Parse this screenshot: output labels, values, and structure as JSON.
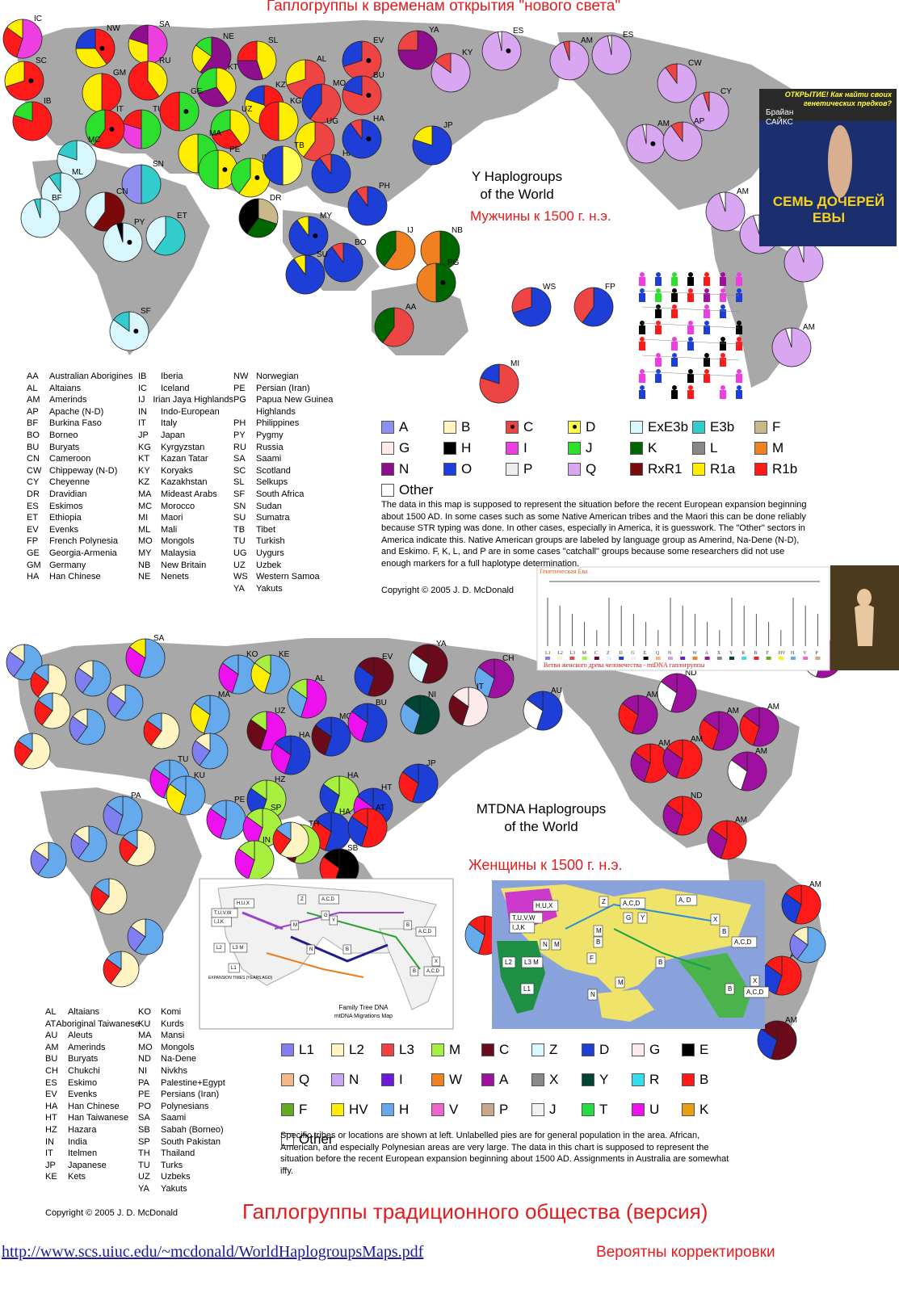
{
  "header": {
    "title": "Гаплогруппы к временам открытия \"нового света\""
  },
  "y_map": {
    "title_line1": "Y Haplogroups",
    "title_line2": "of the World",
    "russian_caption": "Мужчины к 1500 г. н.э.",
    "abbreviations": [
      [
        [
          "AA",
          "Australian Aborigines"
        ],
        [
          "AL",
          "Altaians"
        ],
        [
          "AM",
          "Amerinds"
        ],
        [
          "AP",
          "Apache (N-D)"
        ],
        [
          "BF",
          "Burkina Faso"
        ],
        [
          "BO",
          "Borneo"
        ],
        [
          "BU",
          "Buryats"
        ],
        [
          "CN",
          "Cameroon"
        ],
        [
          "CW",
          "Chippeway (N-D)"
        ],
        [
          "CY",
          "Cheyenne"
        ],
        [
          "DR",
          "Dravidian"
        ],
        [
          "ES",
          "Eskimos"
        ],
        [
          "ET",
          "Ethiopia"
        ],
        [
          "EV",
          "Evenks"
        ],
        [
          "FP",
          "French Polynesia"
        ],
        [
          "GE",
          "Georgia-Armenia"
        ],
        [
          "GM",
          "Germany"
        ],
        [
          "HA",
          "Han Chinese"
        ]
      ],
      [
        [
          "IB",
          "Iberia"
        ],
        [
          "IC",
          "Iceland"
        ],
        [
          "IJ",
          "Irian Jaya Highlands"
        ],
        [
          "IN",
          "Indo-European"
        ],
        [
          "IT",
          "Italy"
        ],
        [
          "JP",
          "Japan"
        ],
        [
          "KG",
          "Kyrgyzstan"
        ],
        [
          "KT",
          "Kazan Tatar"
        ],
        [
          "KY",
          "Koryaks"
        ],
        [
          "KZ",
          "Kazakhstan"
        ],
        [
          "MA",
          "Mideast Arabs"
        ],
        [
          "MC",
          "Morocco"
        ],
        [
          "MI",
          "Maori"
        ],
        [
          "ML",
          "Mali"
        ],
        [
          "MO",
          "Mongols"
        ],
        [
          "MY",
          "Malaysia"
        ],
        [
          "NB",
          "New Britain"
        ],
        [
          "NE",
          "Nenets"
        ]
      ],
      [
        [
          "NW",
          "Norwegian"
        ],
        [
          "PE",
          "Persian (Iran)"
        ],
        [
          "PG",
          "Papua New Guinea Highlands"
        ],
        [
          "PH",
          "Philippines"
        ],
        [
          "PY",
          "Pygmy"
        ],
        [
          "RU",
          "Russia"
        ],
        [
          "SA",
          "Saami"
        ],
        [
          "SC",
          "Scotland"
        ],
        [
          "SL",
          "Selkups"
        ],
        [
          "SF",
          "South Africa"
        ],
        [
          "SN",
          "Sudan"
        ],
        [
          "SU",
          "Sumatra"
        ],
        [
          "TB",
          "Tibet"
        ],
        [
          "TU",
          "Turkish"
        ],
        [
          "UG",
          "Uygurs"
        ],
        [
          "UZ",
          "Uzbek"
        ],
        [
          "WS",
          "Western Samoa"
        ],
        [
          "YA",
          "Yakuts"
        ]
      ]
    ],
    "legend": [
      {
        "label": "A",
        "color": "#8f8ff2"
      },
      {
        "label": "B",
        "color": "#fff4c2"
      },
      {
        "label": "C",
        "color": "#ef4444",
        "dot": true
      },
      {
        "label": "D",
        "color": "#ffff55",
        "dot": true
      },
      {
        "label": "ExE3b",
        "color": "#d9f7ff"
      },
      {
        "label": "E3b",
        "color": "#33cccc"
      },
      {
        "label": "F",
        "color": "#c8b88a"
      },
      {
        "label": "G",
        "color": "#fdeaea"
      },
      {
        "label": "H",
        "color": "#000000"
      },
      {
        "label": "I",
        "color": "#ee3ee0"
      },
      {
        "label": "J",
        "color": "#2ee02e"
      },
      {
        "label": "K",
        "color": "#006600"
      },
      {
        "label": "L",
        "color": "#888888"
      },
      {
        "label": "M",
        "color": "#f08020"
      },
      {
        "label": "N",
        "color": "#8e0e8e"
      },
      {
        "label": "O",
        "color": "#1d3fd8"
      },
      {
        "label": "P",
        "color": "#eeeeee"
      },
      {
        "label": "Q",
        "color": "#d9a6f2"
      },
      {
        "label": "RxR1",
        "color": "#7a0a0a"
      },
      {
        "label": "R1a",
        "color": "#ffee00"
      },
      {
        "label": "R1b",
        "color": "#ff1a1a"
      },
      {
        "label": "Other",
        "color": "#ffffff"
      }
    ],
    "notes": "The data in this map is supposed to represent the situation before the recent European expansion beginning about 1500 AD. In some cases such as some Native American tribes and the Maori this can be done reliably because STR typing was done. In other cases, especially in America, it is guesswork. The \"Other\" sectors in America indicate this. Native American groups are labeled by language group as Amerind, Na-Dene (N-D), and Eskimo.  F, K, L, and P are in some cases \"catchall\" groups because some researchers did not use enough markers for a full haplotype determination.",
    "copyright": "Copyright © 2005 J. D. McDonald"
  },
  "book": {
    "top": "ОТКРЫТИЕ! Как найти своих генетических предков?",
    "author": "Брайан САЙКС",
    "title": "СЕМЬ ДОЧЕРЕЙ ЕВЫ"
  },
  "tree_panel": {
    "title": "Генетическая Ева",
    "caption": "Ветви женского древа человечества - mtDNA гаплогруппы",
    "leaves": [
      "L1",
      "L2",
      "L3",
      "M",
      "C",
      "Z",
      "D",
      "G",
      "E",
      "Q",
      "N",
      "I",
      "W",
      "A",
      "X",
      "Y",
      "R",
      "B",
      "F",
      "HV",
      "H",
      "V",
      "P"
    ]
  },
  "mt_map": {
    "title_line1": "MTDNA Haplogroups",
    "title_line2": "of the World",
    "russian_caption": "Женщины к 1500 г. н.э.",
    "abbreviations": [
      [
        [
          "AL",
          "Altaians"
        ],
        [
          "AT",
          "Aboriginal Taiwanese"
        ],
        [
          "AU",
          "Aleuts"
        ],
        [
          "AM",
          "Amerinds"
        ],
        [
          "BU",
          "Buryats"
        ],
        [
          "CH",
          "Chukchi"
        ],
        [
          "ES",
          "Eskimo"
        ],
        [
          "EV",
          "Evenks"
        ],
        [
          "HA",
          "Han Chinese"
        ],
        [
          "HT",
          "Han Taiwanese"
        ],
        [
          "HZ",
          "Hazara"
        ],
        [
          "IN",
          "India"
        ],
        [
          "IT",
          "Itelmen"
        ],
        [
          "JP",
          "Japanese"
        ],
        [
          "KE",
          "Kets"
        ]
      ],
      [
        [
          "KO",
          "Komi"
        ],
        [
          "KU",
          "Kurds"
        ],
        [
          "MA",
          "Mansi"
        ],
        [
          "MO",
          "Mongols"
        ],
        [
          "ND",
          "Na-Dene"
        ],
        [
          "NI",
          "Nivkhs"
        ],
        [
          "PA",
          "Palestine+Egypt"
        ],
        [
          "PE",
          "Persians (Iran)"
        ],
        [
          "PO",
          "Polynesians"
        ],
        [
          "SA",
          "Saami"
        ],
        [
          "SB",
          "Sabah (Borneo)"
        ],
        [
          "SP",
          "South Pakistan"
        ],
        [
          "TH",
          "Thailand"
        ],
        [
          "TU",
          "Turks"
        ],
        [
          "UZ",
          "Uzbeks"
        ],
        [
          "YA",
          "Yakuts"
        ]
      ]
    ],
    "legend": [
      {
        "label": "L1",
        "color": "#7f7ff2"
      },
      {
        "label": "L2",
        "color": "#fff4c2"
      },
      {
        "label": "L3",
        "color": "#ef4444"
      },
      {
        "label": "M",
        "color": "#a8f040"
      },
      {
        "label": "C",
        "color": "#6b0a1a"
      },
      {
        "label": "Z",
        "color": "#d9f7ff"
      },
      {
        "label": "D",
        "color": "#1d3fd8"
      },
      {
        "label": "G",
        "color": "#fdeaea"
      },
      {
        "label": "E",
        "color": "#000000"
      },
      {
        "label": "Q",
        "color": "#f5b888"
      },
      {
        "label": "N",
        "color": "#c9a6f2"
      },
      {
        "label": "I",
        "color": "#6a1ad8"
      },
      {
        "label": "W",
        "color": "#f08020"
      },
      {
        "label": "A",
        "color": "#a010a0"
      },
      {
        "label": "X",
        "color": "#888888"
      },
      {
        "label": "Y",
        "color": "#004433"
      },
      {
        "label": "R",
        "color": "#33ddee"
      },
      {
        "label": "B",
        "color": "#ff1a1a"
      },
      {
        "label": "F",
        "color": "#66aa22"
      },
      {
        "label": "HV",
        "color": "#ffee00"
      },
      {
        "label": "H",
        "color": "#66aaee"
      },
      {
        "label": "V",
        "color": "#ee66cc"
      },
      {
        "label": "P",
        "color": "#c8a888"
      },
      {
        "label": "J",
        "color": "#f2f2f2"
      },
      {
        "label": "T",
        "color": "#22dd44"
      },
      {
        "label": "U",
        "color": "#ee10ee"
      },
      {
        "label": "K",
        "color": "#e8a010"
      },
      {
        "label": "Other",
        "color": "#ffffff"
      }
    ],
    "notes": "Specific tribes or locations are shown at left. Unlabelled pies are for general population in the area. African, American, and especially Polynesian areas are very large. The data in this chart is supposed to represent the situation before the recent European expansion beginning about 1500 AD. Assignments in Australia are somewhat iffy.",
    "copyright": "Copyright © 2005 J. D. McDonald"
  },
  "migration_map_1": {
    "title": "Family Tree DNA",
    "subtitle": "mtDNA Migrations Map",
    "table_title": "EXPANSION TIMES (YEARS AGO)",
    "labels": [
      "H,U,X",
      "T,U,V,W",
      "I,J,K",
      "L2",
      "L3 M",
      "L1",
      "Z",
      "A,C,D",
      "M",
      "G",
      "Y",
      "B",
      "A,C,D",
      "X",
      "B",
      "A,C,D",
      "N",
      "B"
    ]
  },
  "migration_map_2": {
    "labels": [
      "H,U,X",
      "T,U,V,W",
      "I,J,K",
      "L2",
      "L3 M",
      "L1",
      "N",
      "M",
      "Z",
      "A,C,D",
      "A, D",
      "G",
      "Y",
      "M",
      "B",
      "X",
      "B",
      "A,C,D",
      "F",
      "B",
      "M",
      "X",
      "B",
      "A,C,D",
      "N"
    ]
  },
  "footer": {
    "title": "Гаплогруппы традиционного общества (версия)",
    "url": "http://www.scs.uiuc.edu/~mcdonald/WorldHaplogroupsMaps.pdf",
    "note": "Вероятны корректировки"
  },
  "pie_labels_y": [
    "IC",
    "NW",
    "SA",
    "NE",
    "SL",
    "EV",
    "YA",
    "AM",
    "ES",
    "SC",
    "GM",
    "RU",
    "AL",
    "ES",
    "CW",
    "KT",
    "MO",
    "BU",
    "KY",
    "IB",
    "TU",
    "GE",
    "KZ",
    "KG",
    "CY",
    "IT",
    "UG",
    "JP",
    "UZ",
    "AM",
    "AP",
    "MC",
    "MA",
    "PE",
    "SN",
    "HA",
    "ML",
    "IN",
    "TB",
    "BF",
    "CN",
    "HA",
    "PH",
    "AM",
    "DR",
    "MY",
    "IJ",
    "NB",
    "AM",
    "PY",
    "ET",
    "BO",
    "SU",
    "PG",
    "AM",
    "WS",
    "FP",
    "SF",
    "AA",
    "AM",
    "MI"
  ],
  "pie_labels_mt": [
    "SA",
    "KO",
    "KE",
    "EV",
    "YA",
    "CH",
    "ND",
    "ES",
    "AL",
    "MA",
    "UZ",
    "MO",
    "BU",
    "NI",
    "IT",
    "AU",
    "AM",
    "AM",
    "AM",
    "HA",
    "HA",
    "JP",
    "AM",
    "AM",
    "AM",
    "TU",
    "KU",
    "HZ",
    "HT",
    "ND",
    "PA",
    "PE",
    "SP",
    "IN",
    "HA",
    "AT",
    "AM",
    "TH",
    "SB",
    "PO",
    "AM",
    "AM",
    "AM"
  ]
}
